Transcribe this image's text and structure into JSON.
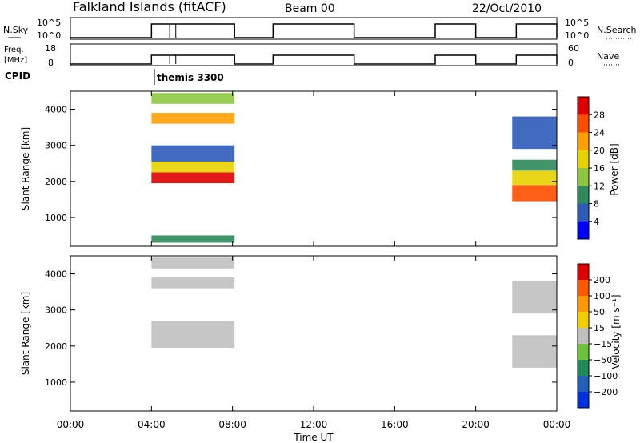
{
  "header": {
    "station": "Falkland Islands (fitACF)",
    "beam": "Beam 00",
    "date": "22/Oct/2010"
  },
  "strips": {
    "nsky_label": "N.Sky",
    "nsky_ticks": [
      "10^5",
      "10^0"
    ],
    "nsearch_label": "N.Search",
    "nsearch_ticks": [
      "10^5",
      "10^0"
    ],
    "freq_label": "Freq.",
    "freq_unit": "[MHz]",
    "freq_ticks": [
      "18",
      "8"
    ],
    "nave_label": "Nave",
    "nave_ticks": [
      "60",
      "0"
    ],
    "cpid_label": "CPID",
    "cpid_value": "themis 3300"
  },
  "colors": {
    "power": [
      "#0000ff",
      "#2e5bb8",
      "#2e8a5a",
      "#8ec63f",
      "#e8d200",
      "#ff9e00",
      "#ff4c00",
      "#e00000"
    ],
    "velocity": [
      "#0030e0",
      "#2060b8",
      "#1f8a55",
      "#6cc43a",
      "#c0c0c0",
      "#f2d000",
      "#ff9800",
      "#ff5a00",
      "#e00000"
    ],
    "ground_scatter": "#c0c0c0"
  },
  "chart_data": [
    {
      "type": "heatmap",
      "title": "Power",
      "xlabel": "Time UT",
      "ylabel": "Slant Range [km]",
      "x_ticks": [
        "00:00",
        "04:00",
        "08:00",
        "12:00",
        "16:00",
        "20:00",
        "00:00"
      ],
      "y_ticks": [
        1000,
        2000,
        3000,
        4000
      ],
      "ylim": [
        200,
        4500
      ],
      "xlim_hours": [
        0,
        24
      ],
      "colorbar": {
        "label": "Power [dB]",
        "ticks": [
          "28",
          "24",
          "20",
          "16",
          "12",
          "8",
          "4"
        ],
        "range": [
          0,
          32
        ]
      },
      "regions": [
        {
          "t0": 4.0,
          "t1": 8.1,
          "r0": 3600,
          "r1": 3900,
          "level": 20
        },
        {
          "t0": 4.0,
          "t1": 8.1,
          "r0": 4150,
          "r1": 4450,
          "level": 12
        },
        {
          "t0": 4.0,
          "t1": 8.1,
          "r0": 1950,
          "r1": 2250,
          "level": 28
        },
        {
          "t0": 4.0,
          "t1": 8.1,
          "r0": 2250,
          "r1": 2550,
          "level": 18
        },
        {
          "t0": 4.0,
          "t1": 8.1,
          "r0": 2550,
          "r1": 3000,
          "level": 6
        },
        {
          "t0": 4.0,
          "t1": 8.1,
          "r0": 300,
          "r1": 500,
          "level": 8
        },
        {
          "t0": 21.8,
          "t1": 24.0,
          "r0": 1450,
          "r1": 1900,
          "level": 26
        },
        {
          "t0": 21.8,
          "t1": 24.0,
          "r0": 1900,
          "r1": 2300,
          "level": 16
        },
        {
          "t0": 21.8,
          "t1": 24.0,
          "r0": 2300,
          "r1": 2600,
          "level": 8
        },
        {
          "t0": 21.8,
          "t1": 24.0,
          "r0": 2900,
          "r1": 3800,
          "level": 6
        }
      ]
    },
    {
      "type": "heatmap",
      "title": "Velocity",
      "xlabel": "Time UT",
      "ylabel": "Slant Range [km]",
      "x_ticks": [
        "00:00",
        "04:00",
        "08:00",
        "12:00",
        "16:00",
        "20:00",
        "00:00"
      ],
      "y_ticks": [
        1000,
        2000,
        3000,
        4000
      ],
      "ylim": [
        200,
        4500
      ],
      "xlim_hours": [
        0,
        24
      ],
      "colorbar": {
        "label": "Velocity [m s⁻¹]",
        "ticks": [
          "200",
          "100",
          "50",
          "15",
          "−15",
          "−50",
          "−100",
          "−200"
        ]
      },
      "regions": [
        {
          "t0": 4.0,
          "t1": 8.1,
          "r0": 1950,
          "r1": 2700,
          "level": 0
        },
        {
          "t0": 4.0,
          "t1": 8.1,
          "r0": 3600,
          "r1": 3900,
          "level": 0
        },
        {
          "t0": 4.0,
          "t1": 8.1,
          "r0": 4150,
          "r1": 4450,
          "level": 0
        },
        {
          "t0": 21.8,
          "t1": 24.0,
          "r0": 1400,
          "r1": 2300,
          "level": 0
        },
        {
          "t0": 21.8,
          "t1": 24.0,
          "r0": 2900,
          "r1": 3800,
          "level": 0
        }
      ]
    }
  ],
  "operating_periods_hours": [
    [
      4.0,
      8.1
    ],
    [
      10.0,
      14.0
    ],
    [
      18.0,
      20.0
    ],
    [
      22.0,
      24.0
    ]
  ]
}
